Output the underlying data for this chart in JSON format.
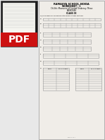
{
  "bg_color": "#e8e8e8",
  "pdf_dark": "#1a1a1a",
  "pdf_red": "#cc1111",
  "pdf_text": "#ffffff",
  "doc_bg": "#f0ede8",
  "doc_border": "#999999",
  "tc": "#999999",
  "title_school": "RAMASYA SCHOOL,NOIDA",
  "title_ws": "WORKSHEET - 1",
  "title_topic": "Ch-5th: Measures of Central Tendency: Mean",
  "title_sub": "EXERCISES",
  "title_class": "CLASS XI",
  "q_text": "Q) Find Mean for following data using suitable method:",
  "page_text": "Page 1 of 1"
}
